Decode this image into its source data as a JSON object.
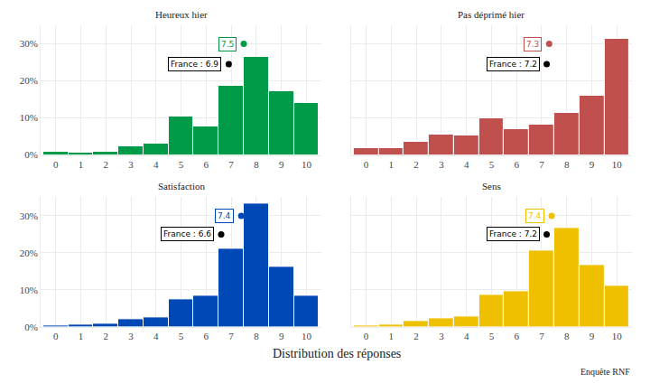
{
  "chart_data": [
    {
      "type": "bar",
      "title": "Heureux hier",
      "x": [
        0,
        1,
        2,
        3,
        4,
        5,
        6,
        7,
        8,
        9,
        10
      ],
      "values": [
        0.8,
        0.6,
        0.8,
        2.3,
        3.0,
        10.4,
        7.8,
        18.7,
        26.4,
        17.1,
        14.0
      ],
      "color": "#009B48",
      "xlim": [
        -0.6,
        10.6
      ],
      "xticks": [
        0,
        1,
        2,
        3,
        4,
        5,
        6,
        7,
        8,
        9,
        10
      ],
      "ylim": [
        0,
        35
      ],
      "yticks": [
        {
          "value": 0,
          "label": "0%"
        },
        {
          "value": 10,
          "label": "10%"
        },
        {
          "value": 20,
          "label": "20%"
        },
        {
          "value": 30,
          "label": "30%"
        }
      ],
      "grid": true,
      "annotations": [
        {
          "x": 7.5,
          "y": 30,
          "text": "7.5",
          "color": "#009B48"
        },
        {
          "x": 6.9,
          "y": 24.5,
          "text": "France : 6.9",
          "color": "#000000"
        }
      ]
    },
    {
      "type": "bar",
      "title": "Pas déprimé hier",
      "x": [
        0,
        1,
        2,
        3,
        4,
        5,
        6,
        7,
        8,
        9,
        10
      ],
      "values": [
        1.8,
        1.8,
        3.6,
        5.5,
        5.2,
        9.8,
        7.0,
        8.3,
        11.3,
        16.0,
        31.3
      ],
      "color": "#C0504D",
      "xlim": [
        -0.6,
        10.6
      ],
      "xticks": [
        0,
        1,
        2,
        3,
        4,
        5,
        6,
        7,
        8,
        9,
        10
      ],
      "ylim": [
        0,
        35
      ],
      "yticks": [
        {
          "value": 0,
          "label": "0%"
        },
        {
          "value": 10,
          "label": "10%"
        },
        {
          "value": 20,
          "label": "20%"
        },
        {
          "value": 30,
          "label": "30%"
        }
      ],
      "grid": true,
      "tick_labels": "x",
      "annotations": [
        {
          "x": 7.3,
          "y": 30,
          "text": "7.3",
          "color": "#C0504D"
        },
        {
          "x": 7.2,
          "y": 24.5,
          "text": "France : 7.2",
          "color": "#000000"
        }
      ]
    },
    {
      "type": "bar",
      "title": "Satisfaction",
      "x": [
        0,
        1,
        2,
        3,
        4,
        5,
        6,
        7,
        8,
        9,
        10
      ],
      "values": [
        0.5,
        0.7,
        0.9,
        2.2,
        2.6,
        7.4,
        8.4,
        21.0,
        33.3,
        16.2,
        8.5
      ],
      "color": "#0048B5",
      "xlim": [
        -0.6,
        10.6
      ],
      "xticks": [
        0,
        1,
        2,
        3,
        4,
        5,
        6,
        7,
        8,
        9,
        10
      ],
      "ylim": [
        0,
        35
      ],
      "yticks": [
        {
          "value": 0,
          "label": "0%"
        },
        {
          "value": 10,
          "label": "10%"
        },
        {
          "value": 20,
          "label": "20%"
        },
        {
          "value": 30,
          "label": "30%"
        }
      ],
      "grid": true,
      "annotations": [
        {
          "x": 7.4,
          "y": 30,
          "text": "7.4",
          "color": "#0048B5"
        },
        {
          "x": 6.6,
          "y": 25,
          "text": "France : 6.6",
          "color": "#000000"
        }
      ]
    },
    {
      "type": "bar",
      "title": "Sens",
      "x": [
        0,
        1,
        2,
        3,
        4,
        5,
        6,
        7,
        8,
        9,
        10
      ],
      "values": [
        0.4,
        0.7,
        1.5,
        2.3,
        2.9,
        8.8,
        9.7,
        20.6,
        26.6,
        16.8,
        11.0
      ],
      "color": "#EFC000",
      "xlim": [
        -0.6,
        10.6
      ],
      "xticks": [
        0,
        1,
        2,
        3,
        4,
        5,
        6,
        7,
        8,
        9,
        10
      ],
      "ylim": [
        0,
        35
      ],
      "yticks": [
        {
          "value": 0,
          "label": "0%"
        },
        {
          "value": 10,
          "label": "10%"
        },
        {
          "value": 20,
          "label": "20%"
        },
        {
          "value": 30,
          "label": "30%"
        }
      ],
      "grid": true,
      "tick_labels": "x",
      "annotations": [
        {
          "x": 7.4,
          "y": 30,
          "text": "7.4",
          "color": "#EFC000"
        },
        {
          "x": 7.2,
          "y": 25,
          "text": "France : 7.2",
          "color": "#000000"
        }
      ]
    }
  ],
  "xlabel": "Distribution des réponses",
  "caption": "Enquête RNF"
}
